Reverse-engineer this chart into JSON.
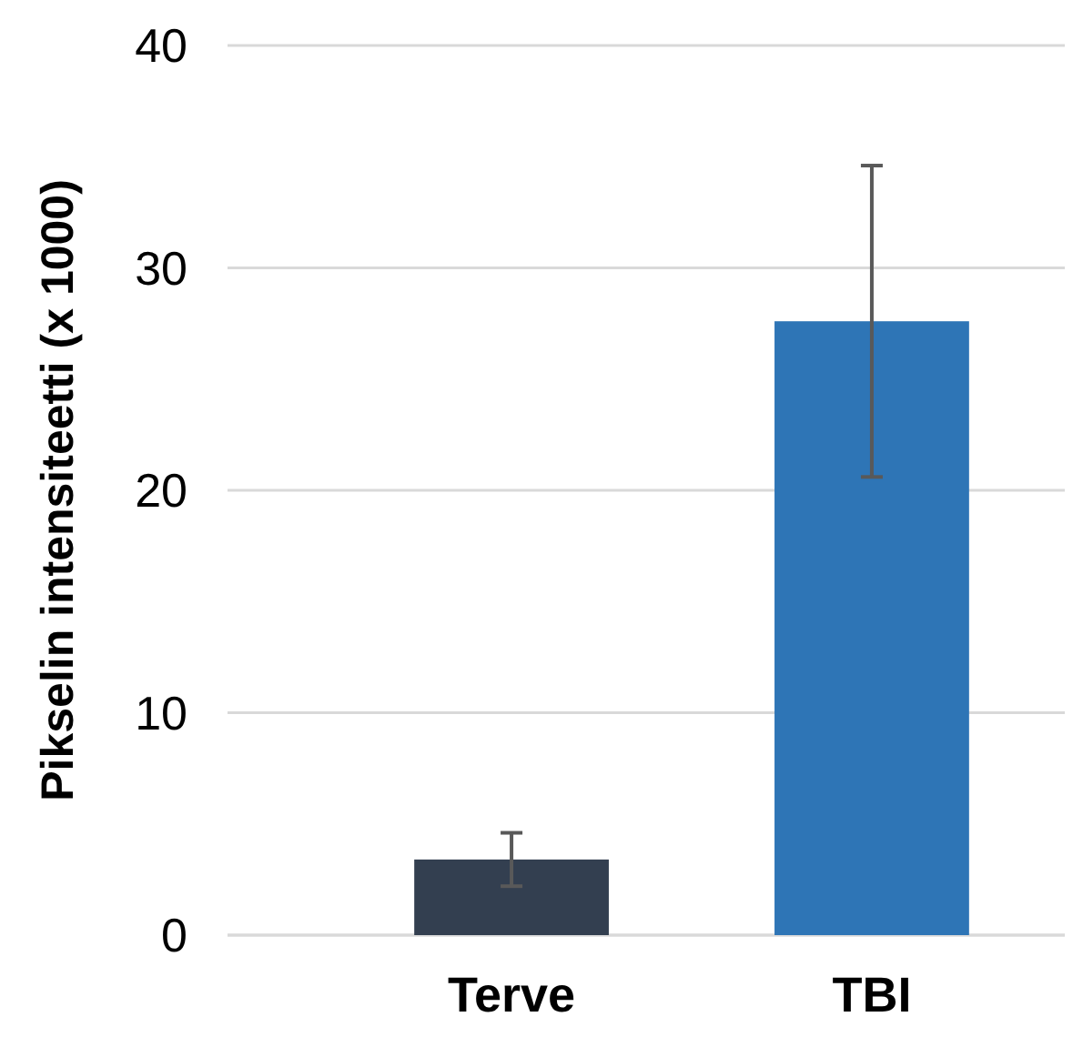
{
  "chart_data": {
    "type": "bar",
    "ylabel": "Pikselin intensiteetti (x 1000)",
    "categories": [
      "Terve",
      "TBI"
    ],
    "values": [
      3.4,
      27.6
    ],
    "colors": [
      "#333f50",
      "#2e75b6"
    ],
    "errors": [
      1.2,
      7.0
    ],
    "ylim": [
      0,
      40
    ],
    "yticks": [
      0,
      10,
      20,
      30,
      40
    ],
    "grid": "y"
  }
}
